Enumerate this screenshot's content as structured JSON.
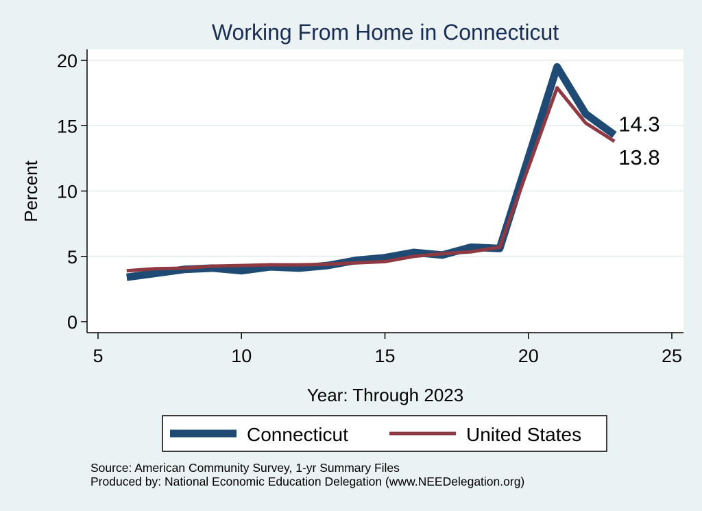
{
  "chart_data": {
    "type": "line",
    "title": "Working From Home in Connecticut",
    "xlabel": "Year: Through 2023",
    "ylabel": "Percent",
    "xlim": [
      5,
      25
    ],
    "ylim": [
      0,
      20
    ],
    "xticks": [
      5,
      10,
      15,
      20,
      25
    ],
    "yticks": [
      0,
      5,
      10,
      15,
      20
    ],
    "grid": "horizontal",
    "legend_position": "bottom",
    "series": [
      {
        "name": "Connecticut",
        "color": "#1f4a74",
        "x": [
          6,
          7,
          8,
          9,
          10,
          11,
          12,
          13,
          14,
          15,
          16,
          17,
          18,
          19,
          21,
          22,
          23
        ],
        "y": [
          3.4,
          3.7,
          4.0,
          4.1,
          3.9,
          4.2,
          4.1,
          4.3,
          4.7,
          4.9,
          5.3,
          5.1,
          5.7,
          5.6,
          19.5,
          15.9,
          14.3
        ],
        "end_label": "14.3"
      },
      {
        "name": "United States",
        "color": "#8f3a43",
        "x": [
          6,
          7,
          8,
          9,
          10,
          11,
          12,
          13,
          14,
          15,
          16,
          17,
          18,
          19,
          21,
          22,
          23
        ],
        "y": [
          3.9,
          4.05,
          4.1,
          4.25,
          4.3,
          4.35,
          4.35,
          4.4,
          4.5,
          4.6,
          5.0,
          5.2,
          5.35,
          5.7,
          17.9,
          15.2,
          13.8
        ],
        "end_label": "13.8"
      }
    ]
  },
  "source_line": "Source: American Community Survey, 1-yr Summary Files",
  "produced_line": "Produced by: National Economic Education Delegation (www.NEEDelegation.org)"
}
